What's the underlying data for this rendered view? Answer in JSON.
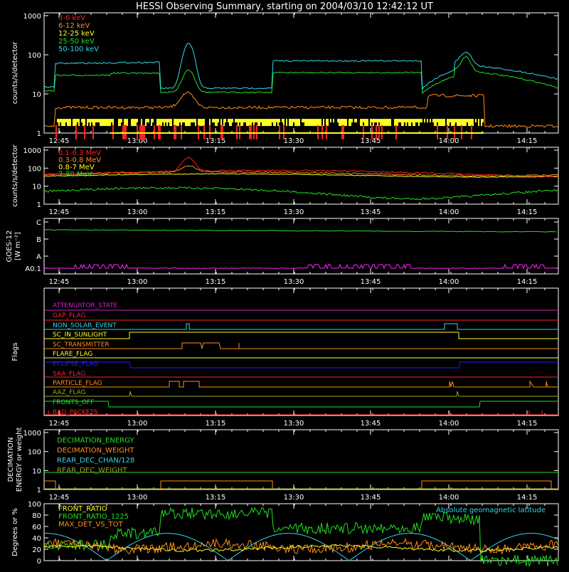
{
  "title": "HESSI Observing Summary, starting on 2004/03/10 12:42:12 UT",
  "time_labels": [
    "12:45",
    "13:00",
    "13:15",
    "13:30",
    "13:45",
    "14:00",
    "14:15"
  ],
  "chart_data": [
    {
      "type": "line",
      "ylabel": "counts/s/detector",
      "scale": "log",
      "ylim": [
        1,
        1000
      ],
      "ytick_labels": [
        "1",
        "10",
        "100",
        "1000"
      ],
      "series": [
        {
          "name": "3-6 keV",
          "color": "#ff2020"
        },
        {
          "name": "6-12 keV",
          "color": "#ff8c1a"
        },
        {
          "name": "12-25 keV",
          "color": "#ffff20"
        },
        {
          "name": "25-50 keV",
          "color": "#20e020"
        },
        {
          "name": "50-100 keV",
          "color": "#30d8e8"
        }
      ]
    },
    {
      "type": "line",
      "ylabel": "counts/s/detector",
      "scale": "log",
      "ylim": [
        1,
        1000
      ],
      "ytick_labels": [
        "1",
        "10",
        "100",
        "1000"
      ],
      "series": [
        {
          "name": "0.1-0.3 MeV",
          "color": "#ff2020"
        },
        {
          "name": "0.3-0.8 MeV",
          "color": "#ff8c1a"
        },
        {
          "name": "0.8-7 MeV",
          "color": "#ffff20"
        },
        {
          "name": "7-20 MeV",
          "color": "#20e020"
        }
      ]
    },
    {
      "type": "line",
      "ylabel_top": "GOES-12",
      "ylabel_bottom": "[W m⁻²]",
      "ytick_labels": [
        "A0.1",
        "A",
        "B",
        "C"
      ],
      "series": [
        {
          "name": "",
          "color": "#20e020"
        },
        {
          "name": "",
          "color": "#ff20ff"
        }
      ]
    },
    {
      "type": "line",
      "ylabel": "Flags",
      "series": [
        {
          "name": "ATTENUATOR_STATE",
          "color": "#d020d0"
        },
        {
          "name": "GAP_FLAG",
          "color": "#ff2020"
        },
        {
          "name": "NON_SOLAR_EVENT",
          "color": "#30d8e8"
        },
        {
          "name": "SC_IN_SUNLIGHT",
          "color": "#ffff20"
        },
        {
          "name": "SC_TRANSMITTER",
          "color": "#ff8c1a"
        },
        {
          "name": "FLARE_FLAG",
          "color": "#ffff20"
        },
        {
          "name": "ECLIPSE_FLAG",
          "color": "#2020ff"
        },
        {
          "name": "SAA_FLAG",
          "color": "#ff2020"
        },
        {
          "name": "PARTICLE_FLAG",
          "color": "#ff8c1a"
        },
        {
          "name": "AAZ_FLAG",
          "color": "#a0a020"
        },
        {
          "name": "FRONTS_OFF",
          "color": "#20e020"
        },
        {
          "name": "BAD_PACKETS",
          "color": "#ff2020"
        }
      ]
    },
    {
      "type": "line",
      "ylabel": "DECIMATION ENERGY or weight",
      "scale": "log",
      "ylim": [
        1,
        1000
      ],
      "ytick_labels": [
        "1",
        "10",
        "100",
        "1000"
      ],
      "series": [
        {
          "name": "DECIMATION_ENERGY",
          "color": "#20e020"
        },
        {
          "name": "DECIMATION_WEIGHT",
          "color": "#ff8c1a"
        },
        {
          "name": "REAR_DEC_CHAN/128",
          "color": "#30d8e8"
        },
        {
          "name": "REAR_DEC_WEIGHT",
          "color": "#a0a020"
        }
      ]
    },
    {
      "type": "line",
      "ylabel": "Degrees or %",
      "ylim": [
        0,
        100
      ],
      "ytick_labels": [
        "0",
        "20",
        "40",
        "60",
        "80",
        "100"
      ],
      "annotation": "Absolute geomagnetic latitude",
      "series": [
        {
          "name": "FRONT_RATIO",
          "color": "#ffff20"
        },
        {
          "name": "FRONT_RATIO_1225",
          "color": "#20e020"
        },
        {
          "name": "MAX_DET_VS_TOT",
          "color": "#ff8c1a"
        }
      ]
    }
  ]
}
